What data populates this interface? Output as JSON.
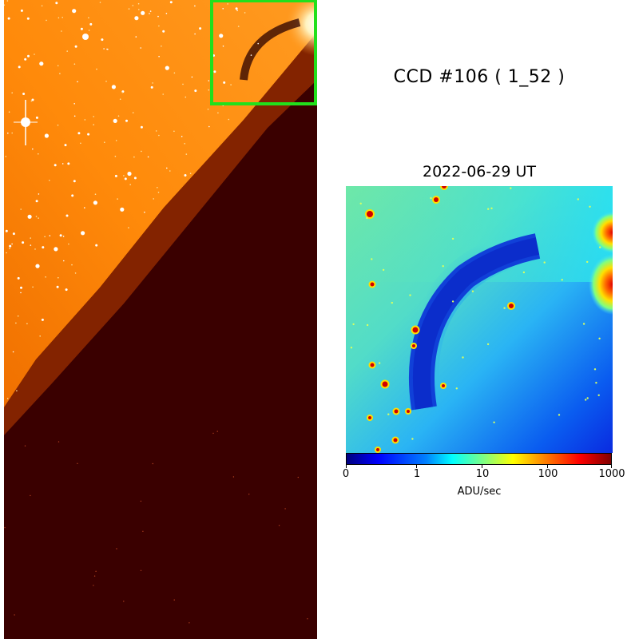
{
  "title": "CCD #106 ( 1_52 )",
  "subtitle": "2022-06-29 UT",
  "colorbar": {
    "label": "ADU/sec",
    "ticks": [
      "0",
      "1",
      "10",
      "100",
      "1000"
    ],
    "colormap": "jet"
  },
  "colors": {
    "highlight_box": "#22e01c",
    "background_sky": "#ff8a0d",
    "dark_region": "#3a0000"
  }
}
